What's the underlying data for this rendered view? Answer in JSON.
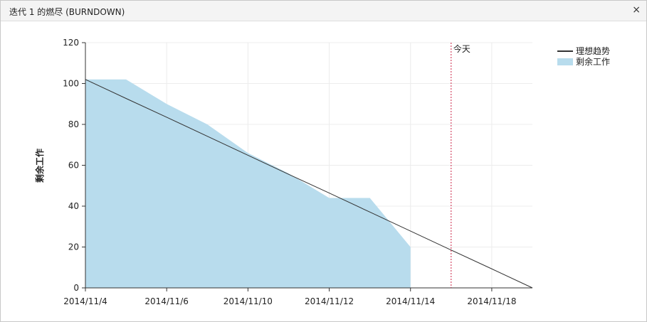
{
  "window": {
    "title": "迭代 1 的燃尽 (BURNDOWN)",
    "close": "×"
  },
  "chart_data": {
    "type": "burndown",
    "y_label": "剩余工作",
    "categories": [
      "2014/11/4",
      null,
      "2014/11/6",
      null,
      "2014/11/10",
      null,
      "2014/11/12",
      null,
      "2014/11/14",
      null,
      "2014/11/18",
      null
    ],
    "series": [
      {
        "name": "理想趋势",
        "type": "line",
        "color": "#333333",
        "values": [
          102,
          92.7,
          83.5,
          74.2,
          64.9,
          55.6,
          46.4,
          37.1,
          27.8,
          18.5,
          9.3,
          0
        ]
      },
      {
        "name": "剩余工作",
        "type": "area",
        "color": "#b8dced",
        "values": [
          102,
          102,
          90,
          80,
          66,
          56,
          44,
          44,
          20,
          null,
          null,
          null
        ]
      }
    ],
    "today": {
      "label": "今天",
      "index": 9,
      "color": "#cc2244"
    },
    "ylim": [
      0,
      120
    ],
    "yticks": [
      0,
      20,
      40,
      60,
      80,
      100,
      120
    ],
    "grid": true
  }
}
